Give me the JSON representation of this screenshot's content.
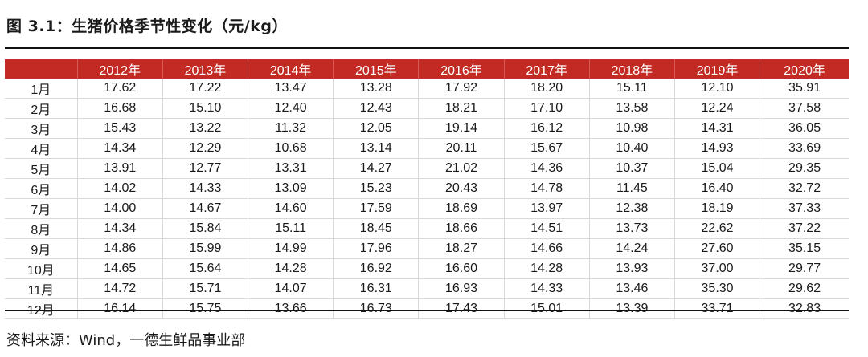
{
  "title": "图 3.1：生猪价格季节性变化（元/kg）",
  "source": "资料来源：Wind，一德生鲜品事业部",
  "table": {
    "headers": [
      "2012年",
      "2013年",
      "2014年",
      "2015年",
      "2016年",
      "2017年",
      "2018年",
      "2019年",
      "2020年"
    ],
    "rows": [
      {
        "month": "1月",
        "values": [
          "17.62",
          "17.22",
          "13.47",
          "13.28",
          "17.92",
          "18.20",
          "15.11",
          "12.10",
          "35.91"
        ]
      },
      {
        "month": "2月",
        "values": [
          "16.68",
          "15.10",
          "12.40",
          "12.43",
          "18.21",
          "17.10",
          "13.58",
          "12.24",
          "37.58"
        ]
      },
      {
        "month": "3月",
        "values": [
          "15.43",
          "13.22",
          "11.32",
          "12.05",
          "19.14",
          "16.12",
          "10.98",
          "14.31",
          "36.05"
        ]
      },
      {
        "month": "4月",
        "values": [
          "14.34",
          "12.29",
          "10.68",
          "13.14",
          "20.11",
          "15.67",
          "10.40",
          "14.93",
          "33.69"
        ]
      },
      {
        "month": "5月",
        "values": [
          "13.91",
          "12.77",
          "13.31",
          "14.27",
          "21.02",
          "14.36",
          "10.37",
          "15.04",
          "29.35"
        ]
      },
      {
        "month": "6月",
        "values": [
          "14.02",
          "14.33",
          "13.09",
          "15.23",
          "20.43",
          "14.78",
          "11.45",
          "16.40",
          "32.72"
        ]
      },
      {
        "month": "7月",
        "values": [
          "14.00",
          "14.67",
          "14.60",
          "17.59",
          "18.69",
          "13.97",
          "12.38",
          "18.19",
          "37.33"
        ]
      },
      {
        "month": "8月",
        "values": [
          "14.34",
          "15.84",
          "15.11",
          "18.45",
          "18.66",
          "14.51",
          "13.73",
          "22.62",
          "37.22"
        ]
      },
      {
        "month": "9月",
        "values": [
          "14.86",
          "15.99",
          "14.99",
          "17.96",
          "18.27",
          "14.66",
          "14.24",
          "27.60",
          "35.15"
        ]
      },
      {
        "month": "10月",
        "values": [
          "14.65",
          "15.64",
          "14.28",
          "16.92",
          "16.60",
          "14.28",
          "13.93",
          "37.00",
          "29.77"
        ]
      },
      {
        "month": "11月",
        "values": [
          "14.72",
          "15.71",
          "14.07",
          "16.31",
          "16.93",
          "14.33",
          "13.46",
          "35.30",
          "29.62"
        ]
      },
      {
        "month": "12月",
        "values": [
          "16.14",
          "15.75",
          "13.66",
          "16.73",
          "17.43",
          "15.01",
          "13.39",
          "33.71",
          "32.83"
        ]
      }
    ]
  }
}
